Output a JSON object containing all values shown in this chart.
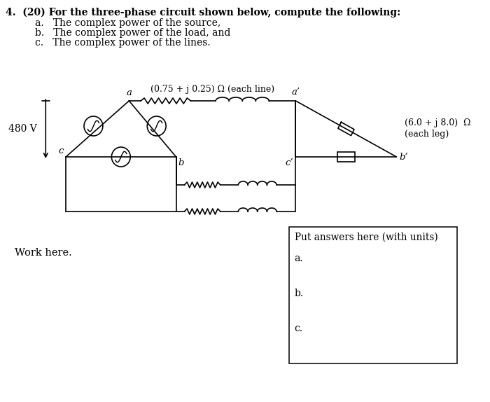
{
  "title_line1": "4.  (20) For the three-phase circuit shown below, compute the following:",
  "sub_a": "a.   The complex power of the source,",
  "sub_b": "b.   The complex power of the load, and",
  "sub_c": "c.   The complex power of the lines.",
  "line_impedance_label": "(0.75 + j 0.25) Ω (each line)",
  "load_impedance_label1": "(6.0 + j 8.0)  Ω",
  "load_impedance_label2": "(each leg)",
  "voltage_label": "480 V",
  "node_a": "a",
  "node_b": "b",
  "node_c": "c",
  "node_ap": "a’",
  "node_bp": "b’",
  "node_cp": "c’",
  "work_label": "Work here.",
  "answer_box_title": "Put answers here (with units)",
  "answer_a": "a.",
  "answer_b": "b.",
  "answer_c": "c.",
  "bg_color": "#ffffff",
  "line_color": "#000000",
  "font_size_title": 10.0,
  "font_size_labels": 9.5,
  "font_size_small": 9.0
}
